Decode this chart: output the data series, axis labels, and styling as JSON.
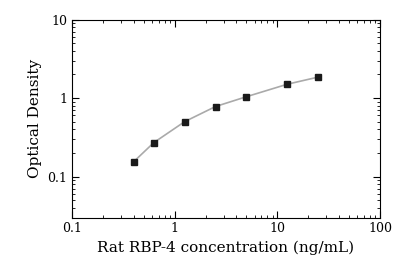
{
  "x": [
    0.4,
    0.625,
    1.25,
    2.5,
    5.0,
    12.5,
    25.0
  ],
  "y": [
    0.155,
    0.27,
    0.5,
    0.78,
    1.04,
    1.5,
    1.85
  ],
  "xlabel": "Rat RBP-4 concentration (ng/mL)",
  "ylabel": "Optical Density",
  "xlim": [
    0.1,
    100
  ],
  "ylim": [
    0.03,
    10
  ],
  "marker": "s",
  "marker_color": "#1a1a1a",
  "line_color": "#aaaaaa",
  "line_style": "-",
  "marker_size": 5,
  "background_color": "#ffffff",
  "xlabel_fontsize": 11,
  "ylabel_fontsize": 11,
  "tick_fontsize": 9,
  "font_family": "serif"
}
